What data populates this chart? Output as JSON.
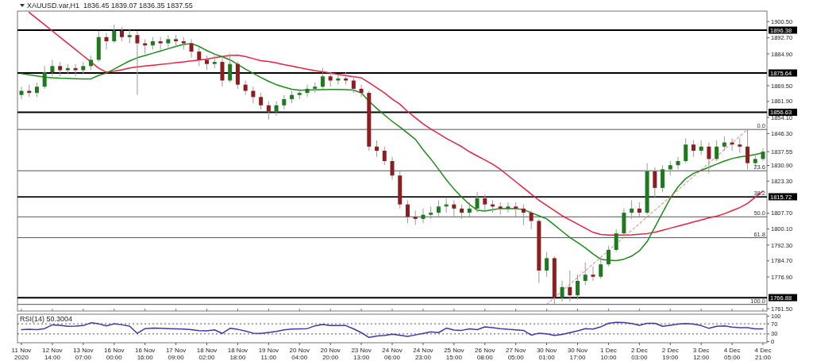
{
  "chart_data": [
    {
      "type": "candlestick",
      "title": "XAUUSD.var,H1  1836.45 1839.07 1836.35 1837.55",
      "ohlc": [
        [
          1865,
          1869,
          1863,
          1867
        ],
        [
          1867,
          1870,
          1864,
          1866
        ],
        [
          1866,
          1871,
          1864,
          1869
        ],
        [
          1869,
          1879,
          1868,
          1876
        ],
        [
          1876,
          1882,
          1874,
          1879
        ],
        [
          1879,
          1881,
          1874,
          1877
        ],
        [
          1877,
          1880,
          1875,
          1878
        ],
        [
          1878,
          1880,
          1874,
          1877
        ],
        [
          1877,
          1881,
          1875,
          1879
        ],
        [
          1879,
          1884,
          1877,
          1882
        ],
        [
          1882,
          1896,
          1881,
          1893
        ],
        [
          1893,
          1895,
          1887,
          1891
        ],
        [
          1891,
          1899,
          1890,
          1896
        ],
        [
          1896,
          1898,
          1891,
          1893
        ],
        [
          1893,
          1897,
          1890,
          1894
        ],
        [
          1894,
          1896,
          1865,
          1890
        ],
        [
          1890,
          1892,
          1885,
          1889
        ],
        [
          1889,
          1893,
          1887,
          1891
        ],
        [
          1891,
          1893,
          1887,
          1890
        ],
        [
          1890,
          1894,
          1888,
          1892
        ],
        [
          1892,
          1894,
          1888,
          1891
        ],
        [
          1891,
          1893,
          1887,
          1890
        ],
        [
          1890,
          1892,
          1883,
          1886
        ],
        [
          1886,
          1888,
          1879,
          1882
        ],
        [
          1882,
          1884,
          1877,
          1880
        ],
        [
          1880,
          1884,
          1878,
          1881
        ],
        [
          1881,
          1883,
          1869,
          1872
        ],
        [
          1872,
          1885,
          1871,
          1880
        ],
        [
          1880,
          1881,
          1868,
          1870
        ],
        [
          1870,
          1872,
          1865,
          1867
        ],
        [
          1867,
          1869,
          1861,
          1864
        ],
        [
          1864,
          1866,
          1858,
          1860
        ],
        [
          1860,
          1862,
          1853,
          1857
        ],
        [
          1857,
          1862,
          1855,
          1860
        ],
        [
          1860,
          1865,
          1858,
          1863
        ],
        [
          1863,
          1867,
          1861,
          1865
        ],
        [
          1865,
          1868,
          1863,
          1866
        ],
        [
          1866,
          1870,
          1864,
          1868
        ],
        [
          1868,
          1871,
          1866,
          1869
        ],
        [
          1869,
          1878,
          1868,
          1874
        ],
        [
          1874,
          1876,
          1869,
          1872
        ],
        [
          1872,
          1875,
          1870,
          1873
        ],
        [
          1873,
          1876,
          1870,
          1872
        ],
        [
          1872,
          1874,
          1866,
          1868
        ],
        [
          1868,
          1870,
          1864,
          1866
        ],
        [
          1866,
          1867,
          1838,
          1840
        ],
        [
          1840,
          1843,
          1835,
          1838
        ],
        [
          1838,
          1840,
          1831,
          1833
        ],
        [
          1833,
          1835,
          1824,
          1826
        ],
        [
          1826,
          1828,
          1810,
          1812
        ],
        [
          1812,
          1814,
          1803,
          1806
        ],
        [
          1806,
          1809,
          1802,
          1805
        ],
        [
          1805,
          1810,
          1803,
          1807
        ],
        [
          1807,
          1811,
          1805,
          1808
        ],
        [
          1808,
          1814,
          1806,
          1811
        ],
        [
          1811,
          1815,
          1808,
          1812
        ],
        [
          1812,
          1814,
          1806,
          1810
        ],
        [
          1810,
          1812,
          1805,
          1808
        ],
        [
          1808,
          1813,
          1806,
          1810
        ],
        [
          1810,
          1818,
          1808,
          1815
        ],
        [
          1815,
          1817,
          1809,
          1812
        ],
        [
          1812,
          1814,
          1808,
          1811
        ],
        [
          1811,
          1813,
          1807,
          1810
        ],
        [
          1810,
          1813,
          1808,
          1811
        ],
        [
          1811,
          1813,
          1806,
          1810
        ],
        [
          1810,
          1812,
          1802,
          1808
        ],
        [
          1808,
          1809,
          1800,
          1804
        ],
        [
          1804,
          1805,
          1774,
          1780
        ],
        [
          1780,
          1789,
          1777,
          1786
        ],
        [
          1786,
          1787,
          1763.6,
          1767
        ],
        [
          1767,
          1775,
          1765,
          1772
        ],
        [
          1772,
          1780,
          1765,
          1768
        ],
        [
          1768,
          1778,
          1766,
          1775
        ],
        [
          1775,
          1784,
          1773,
          1778
        ],
        [
          1778,
          1782,
          1775,
          1777
        ],
        [
          1777,
          1785,
          1776,
          1783
        ],
        [
          1783,
          1792,
          1782,
          1790
        ],
        [
          1790,
          1800,
          1789,
          1798
        ],
        [
          1798,
          1810,
          1797,
          1808
        ],
        [
          1808,
          1814,
          1805,
          1810
        ],
        [
          1810,
          1813,
          1806,
          1808
        ],
        [
          1808,
          1832,
          1807,
          1828
        ],
        [
          1828,
          1830,
          1815,
          1820
        ],
        [
          1820,
          1831,
          1818,
          1829
        ],
        [
          1829,
          1833,
          1826,
          1831
        ],
        [
          1831,
          1835,
          1829,
          1833
        ],
        [
          1833,
          1844,
          1832,
          1841
        ],
        [
          1841,
          1843,
          1835,
          1838
        ],
        [
          1838,
          1843,
          1836,
          1840
        ],
        [
          1840,
          1842,
          1827,
          1834
        ],
        [
          1834,
          1843,
          1833,
          1840
        ],
        [
          1840,
          1845,
          1838,
          1842
        ],
        [
          1842,
          1844,
          1838,
          1841
        ],
        [
          1841,
          1844,
          1837,
          1840
        ],
        [
          1840,
          1848.3,
          1829,
          1832
        ],
        [
          1832,
          1836,
          1830,
          1834
        ],
        [
          1834,
          1839.07,
          1833,
          1837.55
        ]
      ],
      "colors": [
        "#1f7a1f",
        "#8b1e1e",
        "#1f7a1f",
        "#1f7a1f",
        "#1f7a1f",
        "#8b1e1e",
        "#1f7a1f",
        "#8b1e1e",
        "#1f7a1f",
        "#1f7a1f",
        "#1f7a1f",
        "#8b1e1e",
        "#1f7a1f",
        "#8b1e1e",
        "#1f7a1f",
        "#8b1e1e",
        "#8b1e1e",
        "#1f7a1f",
        "#8b1e1e",
        "#1f7a1f",
        "#8b1e1e",
        "#8b1e1e",
        "#8b1e1e",
        "#8b1e1e",
        "#8b1e1e",
        "#1f7a1f",
        "#8b1e1e",
        "#1f7a1f",
        "#8b1e1e",
        "#8b1e1e",
        "#8b1e1e",
        "#8b1e1e",
        "#8b1e1e",
        "#1f7a1f",
        "#1f7a1f",
        "#1f7a1f",
        "#1f7a1f",
        "#1f7a1f",
        "#1f7a1f",
        "#1f7a1f",
        "#8b1e1e",
        "#1f7a1f",
        "#8b1e1e",
        "#8b1e1e",
        "#8b1e1e",
        "#8b1e1e",
        "#8b1e1e",
        "#8b1e1e",
        "#8b1e1e",
        "#8b1e1e",
        "#8b1e1e",
        "#8b1e1e",
        "#1f7a1f",
        "#1f7a1f",
        "#1f7a1f",
        "#1f7a1f",
        "#8b1e1e",
        "#8b1e1e",
        "#1f7a1f",
        "#1f7a1f",
        "#8b1e1e",
        "#8b1e1e",
        "#8b1e1e",
        "#1f7a1f",
        "#8b1e1e",
        "#8b1e1e",
        "#8b1e1e",
        "#8b1e1e",
        "#1f7a1f",
        "#8b1e1e",
        "#1f7a1f",
        "#8b1e1e",
        "#1f7a1f",
        "#1f7a1f",
        "#8b1e1e",
        "#1f7a1f",
        "#1f7a1f",
        "#1f7a1f",
        "#1f7a1f",
        "#1f7a1f",
        "#8b1e1e",
        "#1f7a1f",
        "#8b1e1e",
        "#1f7a1f",
        "#1f7a1f",
        "#1f7a1f",
        "#1f7a1f",
        "#8b1e1e",
        "#1f7a1f",
        "#8b1e1e",
        "#1f7a1f",
        "#1f7a1f",
        "#8b1e1e",
        "#8b1e1e",
        "#8b1e1e",
        "#1f7a1f",
        "#1f7a1f"
      ],
      "series": [
        {
          "type": "line",
          "color": "#e8213f",
          "values": [
            null,
            1905.0,
            1902.0,
            1899.0,
            1896.0,
            1893.0,
            1890.0,
            1887.0,
            1884.0,
            1881.0,
            1878.0,
            1876.0,
            1876.5,
            1877.2,
            1878.0,
            1878.6,
            1879.0,
            1879.4,
            1879.8,
            1880.2,
            1880.6,
            1881.0,
            1881.5,
            1881.9,
            1882.4,
            1883.0,
            1883.6,
            1884.2,
            1884.3,
            1883.6,
            1882.6,
            1881.6,
            1881.2,
            1880.5,
            1879.7,
            1879.0,
            1878.2,
            1877.5,
            1876.8,
            1876.2,
            1875.6,
            1875.0,
            1874.4,
            1873.8,
            1873.3,
            1871.0,
            1868.5,
            1866.0,
            1863.0,
            1860.5,
            1857.0,
            1854.0,
            1851.0,
            1848.5,
            1846.3,
            1844.0,
            1842.0,
            1840.0,
            1837.5,
            1835.5,
            1833.5,
            1831.5,
            1829.0,
            1826.0,
            1823.0,
            1820.0,
            1817.0,
            1814.0,
            1811.5,
            1809.0,
            1806.5,
            1804.5,
            1802.5,
            1800.5,
            1798.5,
            1797.5,
            1797.2,
            1797.2,
            1797.2,
            1797.3,
            1797.6,
            1797.9,
            1798.5,
            1799.5,
            1800.5,
            1801.5,
            1802.5,
            1803.5,
            1804.5,
            1805.5,
            1806.3,
            1807.5,
            1809.0,
            1810.5,
            1812.5,
            1815.5,
            1818.5
          ]
        },
        {
          "type": "line",
          "color": "#1a8c1a",
          "values": [
            1875.3,
            1874.8,
            1874.2,
            1873.6,
            1873.3,
            1873.1,
            1873.0,
            1872.9,
            1872.8,
            1872.8,
            1874.5,
            1875.6,
            1877.5,
            1879.5,
            1881.5,
            1883.0,
            1884.1,
            1885.2,
            1886.3,
            1887.4,
            1888.5,
            1889.5,
            1889.9,
            1888.5,
            1886.5,
            1884.8,
            1883.5,
            1882.0,
            1879.8,
            1877.5,
            1875.5,
            1873.5,
            1871.6,
            1870.0,
            1868.8,
            1867.8,
            1867.3,
            1867.4,
            1867.5,
            1867.6,
            1867.7,
            1867.7,
            1867.6,
            1867.4,
            1866.0,
            1862.0,
            1858.5,
            1855.3,
            1852.2,
            1849.5,
            1846.5,
            1843.5,
            1838.5,
            1834.0,
            1829.0,
            1824.0,
            1819.5,
            1815.5,
            1812.0,
            1809.2,
            1808.8,
            1809.5,
            1810.0,
            1810.0,
            1810.0,
            1809.5,
            1808.0,
            1806.5,
            1805.0,
            1802.0,
            1799.0,
            1796.0,
            1793.6,
            1791.0,
            1788.0,
            1785.5,
            1785.0,
            1784.8,
            1785.5,
            1787.0,
            1789.5,
            1794.0,
            1801.0,
            1808.0,
            1815.0,
            1820.5,
            1824.5,
            1827.0,
            1828.5,
            1830.0,
            1831.5,
            1833.0,
            1834.2,
            1835.0,
            1835.5,
            1836.2,
            1837.0
          ]
        },
        {
          "type": "line",
          "color": "#f06060",
          "line_style": "dashed",
          "values": [
            null,
            null,
            null,
            null,
            null,
            null,
            null,
            null,
            null,
            null,
            null,
            null,
            null,
            null,
            null,
            null,
            null,
            null,
            null,
            null,
            null,
            null,
            null,
            null,
            null,
            null,
            null,
            null,
            null,
            null,
            null,
            null,
            null,
            null,
            null,
            null,
            null,
            null,
            null,
            null,
            null,
            null,
            null,
            null,
            null,
            null,
            null,
            null,
            null,
            null,
            null,
            null,
            null,
            null,
            null,
            null,
            null,
            null,
            null,
            null,
            null,
            null,
            null,
            null,
            null,
            null,
            null,
            null,
            1763.6,
            null,
            null,
            null,
            null,
            null,
            null,
            null,
            null,
            null,
            null,
            null,
            null,
            null,
            null,
            null,
            null,
            null,
            null,
            null,
            null,
            null,
            null,
            null,
            null,
            null,
            1848.3,
            null,
            null
          ]
        }
      ],
      "ylim": [
        1760.4,
        1905.6
      ],
      "yticks": [
        {
          "value": 1900.5,
          "label": "1900.50"
        },
        {
          "value": 1892.7,
          "label": "1892.70"
        },
        {
          "value": 1884.9,
          "label": "1884.90"
        },
        {
          "value": 1869.5,
          "label": "1869.50"
        },
        {
          "value": 1861.9,
          "label": "1861.90"
        },
        {
          "value": 1854.1,
          "label": "1854.10"
        },
        {
          "value": 1846.3,
          "label": "1846.30"
        },
        1837.55,
        {
          "value": 1830.9,
          "label": "1830.90"
        },
        {
          "value": 1823.3,
          "label": "1823.30"
        },
        {
          "value": 1807.7,
          "label": "1807.70"
        },
        {
          "value": 1800.1,
          "label": "1800.10"
        },
        {
          "value": 1792.3,
          "label": "1792.30"
        },
        {
          "value": 1784.7,
          "label": "1784.70"
        },
        {
          "value": 1776.9,
          "label": "1776.90"
        },
        {
          "value": 1761.5,
          "label": "1761.50"
        }
      ],
      "ref_lines": [
        {
          "axis": "y",
          "value": 1896.38,
          "label": "1896.38",
          "color": "#000000"
        },
        {
          "axis": "y",
          "value": 1875.64,
          "label": "1875.64",
          "color": "#000000"
        },
        {
          "axis": "y",
          "value": 1856.63,
          "label": "1856.63",
          "color": "#000000"
        },
        {
          "axis": "y",
          "value": 1815.72,
          "label": "1815.72",
          "color": "#000000"
        },
        {
          "axis": "y",
          "value": 1766.88,
          "label": "1766.88",
          "color": "#000000"
        },
        {
          "axis": "y",
          "value": 1848.3,
          "color": "#555555"
        },
        {
          "axis": "y",
          "value": 1828.3,
          "color": "#555555"
        },
        {
          "axis": "y",
          "value": 1815.9,
          "color": "#555555"
        },
        {
          "axis": "y",
          "value": 1806.0,
          "color": "#555555"
        },
        {
          "axis": "y",
          "value": 1795.9,
          "color": "#555555"
        },
        {
          "axis": "y",
          "value": 1763.6,
          "color": "#555555"
        }
      ],
      "annotations": [
        {
          "text": "0.0",
          "y": 1848.3
        },
        {
          "text": "23.6",
          "y": 1828.3
        },
        {
          "text": "38.2",
          "y": 1815.9
        },
        {
          "text": "50.0",
          "y": 1806.0
        },
        {
          "text": "61.8",
          "y": 1795.9
        },
        {
          "text": "100.0",
          "y": 1763.6
        }
      ],
      "tick_labels": "y"
    },
    {
      "type": "line",
      "title": "RSI(14) 50.3004",
      "categories": [
        "11 Nov 2020",
        null,
        null,
        null,
        "12 Nov 14:00",
        null,
        null,
        null,
        "13 Nov 07:00",
        null,
        null,
        null,
        "16 Nov 00:00",
        null,
        null,
        null,
        "16 Nov 16:00",
        null,
        null,
        null,
        "17 Nov 09:00",
        null,
        null,
        null,
        "18 Nov 02:00",
        null,
        null,
        null,
        "18 Nov 18:00",
        null,
        null,
        null,
        "19 Nov 11:00",
        null,
        null,
        null,
        "20 Nov 04:00",
        null,
        null,
        null,
        "20 Nov 20:00",
        null,
        null,
        null,
        "23 Nov 13:00",
        null,
        null,
        null,
        "24 Nov 06:00",
        null,
        null,
        null,
        "24 Nov 23:00",
        null,
        null,
        null,
        "25 Nov 15:00",
        null,
        null,
        null,
        "26 Nov 08:00",
        null,
        null,
        null,
        "27 Nov 05:00",
        null,
        null,
        null,
        "30 Nov 01:00",
        null,
        null,
        null,
        "30 Nov 17:00",
        null,
        null,
        null,
        "1 Dec 10:00",
        null,
        null,
        null,
        "2 Dec 03:00",
        null,
        null,
        null,
        "2 Dec 19:00",
        null,
        null,
        null,
        "3 Dec 12:00",
        null,
        null,
        null,
        "4 Dec 05:00",
        null,
        null,
        null,
        "4 Dec 21:00"
      ],
      "series": [
        {
          "color": "#3a3aa8",
          "values": [
            47,
            48,
            47,
            51,
            66,
            64,
            60,
            61,
            63,
            74,
            70,
            62,
            70,
            66,
            61,
            32,
            51,
            53,
            52,
            51,
            50,
            49,
            47,
            43,
            42,
            46,
            32,
            52,
            48,
            41,
            33,
            32,
            36,
            40,
            46,
            49,
            50,
            51,
            62,
            67,
            63,
            63,
            63,
            50,
            35,
            16,
            22,
            24,
            29,
            25,
            20,
            26,
            32,
            38,
            35,
            53,
            45,
            44,
            50,
            47,
            58,
            55,
            51,
            48,
            46,
            44,
            25,
            33,
            30,
            24,
            28,
            35,
            42,
            51,
            49,
            58,
            72,
            76,
            75,
            71,
            64,
            72,
            72,
            60,
            64,
            69,
            71,
            69,
            63,
            52,
            60,
            62,
            57,
            55,
            55,
            50,
            50
          ]
        }
      ],
      "ylim": [
        -5,
        108
      ],
      "yticks": [
        0,
        30,
        70,
        100
      ],
      "ref_lines": [
        {
          "axis": "y",
          "value": 30,
          "color": "#555555",
          "line_style": "dashed"
        },
        {
          "axis": "y",
          "value": 70,
          "color": "#555555",
          "line_style": "dashed"
        }
      ]
    }
  ]
}
